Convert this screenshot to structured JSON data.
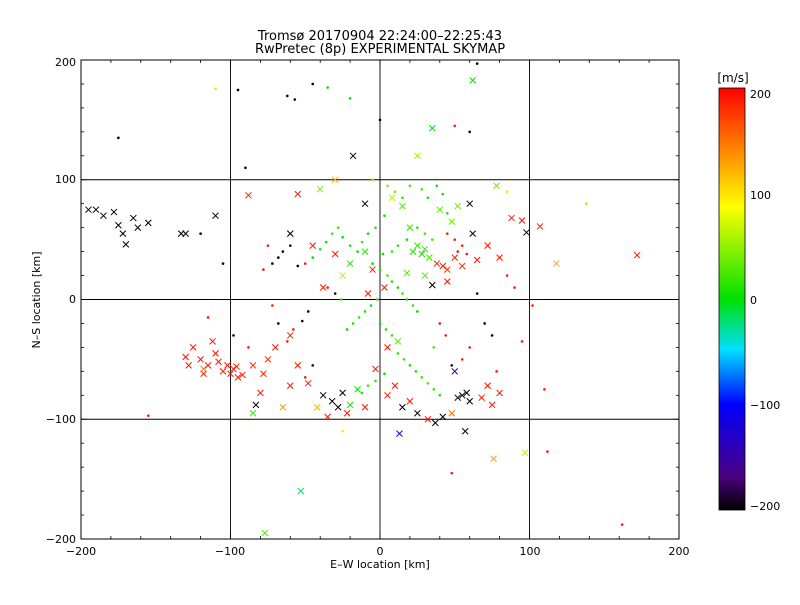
{
  "chart_data": {
    "type": "scatter",
    "title_line1": "Tromsø 20170904 22:24:00–22:25:43",
    "title_line2": "RwPretec (8p) EXPERIMENTAL SKYMAP",
    "xlabel": "E–W location [km]",
    "ylabel": "N–S location [km]",
    "xlim": [
      -200,
      200
    ],
    "ylim": [
      -200,
      200
    ],
    "xticks": [
      "−200",
      "−100",
      "0",
      "100",
      "200"
    ],
    "yticks": [
      "−200",
      "−100",
      "0",
      "100",
      "200"
    ],
    "grid": true,
    "colorbar": {
      "label": "[m/s]",
      "range": [
        -200,
        200
      ],
      "ticks": [
        "200",
        "100",
        "0",
        "−100",
        "−200"
      ],
      "colors": [
        "#000000",
        "#4b0082",
        "#0000ff",
        "#00e0ff",
        "#00e000",
        "#ffff00",
        "#ff8000",
        "#ff0000"
      ]
    },
    "cross_points": [
      {
        "x": -120,
        "y": -50,
        "v": 190
      },
      {
        "x": -115,
        "y": -55,
        "v": 190
      },
      {
        "x": -110,
        "y": -45,
        "v": 190
      },
      {
        "x": -105,
        "y": -60,
        "v": 185
      },
      {
        "x": -100,
        "y": -62,
        "v": 190
      },
      {
        "x": -95,
        "y": -65,
        "v": 190
      },
      {
        "x": -98,
        "y": -58,
        "v": 190
      },
      {
        "x": -92,
        "y": -63,
        "v": 190
      },
      {
        "x": -125,
        "y": -40,
        "v": 190
      },
      {
        "x": -112,
        "y": -35,
        "v": 190
      },
      {
        "x": -118,
        "y": -62,
        "v": 185
      },
      {
        "x": -128,
        "y": -55,
        "v": 190
      },
      {
        "x": -108,
        "y": -52,
        "v": 190
      },
      {
        "x": -102,
        "y": -55,
        "v": 190
      },
      {
        "x": -96,
        "y": -56,
        "v": 190
      },
      {
        "x": -130,
        "y": -48,
        "v": 190
      },
      {
        "x": -85,
        "y": -55,
        "v": 180
      },
      {
        "x": -78,
        "y": -62,
        "v": 180
      },
      {
        "x": -75,
        "y": -50,
        "v": 180
      },
      {
        "x": -195,
        "y": 75,
        "v": -200
      },
      {
        "x": -190,
        "y": 75,
        "v": -200
      },
      {
        "x": -185,
        "y": 70,
        "v": -200
      },
      {
        "x": -178,
        "y": 73,
        "v": -200
      },
      {
        "x": -175,
        "y": 62,
        "v": -200
      },
      {
        "x": -172,
        "y": 55,
        "v": -200
      },
      {
        "x": -170,
        "y": 46,
        "v": -200
      },
      {
        "x": -162,
        "y": 60,
        "v": -200
      },
      {
        "x": -155,
        "y": 64,
        "v": -200
      },
      {
        "x": -165,
        "y": 68,
        "v": -200
      },
      {
        "x": -133,
        "y": 55,
        "v": -200
      },
      {
        "x": -130,
        "y": 55,
        "v": -200
      },
      {
        "x": -110,
        "y": 70,
        "v": -200
      },
      {
        "x": -88,
        "y": 87,
        "v": 190
      },
      {
        "x": -55,
        "y": 88,
        "v": 190
      },
      {
        "x": -40,
        "y": 92,
        "v": 40
      },
      {
        "x": -30,
        "y": 100,
        "v": 120
      },
      {
        "x": -18,
        "y": 120,
        "v": -200
      },
      {
        "x": -10,
        "y": 80,
        "v": -200
      },
      {
        "x": 8,
        "y": 85,
        "v": 60
      },
      {
        "x": 15,
        "y": 78,
        "v": 30
      },
      {
        "x": 20,
        "y": 60,
        "v": 20
      },
      {
        "x": 25,
        "y": 45,
        "v": 20
      },
      {
        "x": 22,
        "y": 40,
        "v": 10
      },
      {
        "x": 28,
        "y": 38,
        "v": 5
      },
      {
        "x": 30,
        "y": 42,
        "v": 20
      },
      {
        "x": 33,
        "y": 35,
        "v": 25
      },
      {
        "x": 38,
        "y": 30,
        "v": 190
      },
      {
        "x": 42,
        "y": 28,
        "v": 190
      },
      {
        "x": 45,
        "y": 25,
        "v": 180
      },
      {
        "x": 50,
        "y": 35,
        "v": 190
      },
      {
        "x": 55,
        "y": 28,
        "v": 180
      },
      {
        "x": 40,
        "y": 75,
        "v": 30
      },
      {
        "x": 48,
        "y": 65,
        "v": 40
      },
      {
        "x": 52,
        "y": 78,
        "v": 40
      },
      {
        "x": 60,
        "y": 80,
        "v": -200
      },
      {
        "x": 62,
        "y": 55,
        "v": -200
      },
      {
        "x": 65,
        "y": 33,
        "v": 190
      },
      {
        "x": 72,
        "y": 45,
        "v": 190
      },
      {
        "x": 80,
        "y": 35,
        "v": 190
      },
      {
        "x": 88,
        "y": 68,
        "v": 190
      },
      {
        "x": 95,
        "y": 66,
        "v": 190
      },
      {
        "x": 98,
        "y": 56,
        "v": -200
      },
      {
        "x": 107,
        "y": 61,
        "v": 190
      },
      {
        "x": 118,
        "y": 30,
        "v": 130
      },
      {
        "x": 172,
        "y": 37,
        "v": 190
      },
      {
        "x": 78,
        "y": 95,
        "v": 40
      },
      {
        "x": 62,
        "y": 183,
        "v": 0
      },
      {
        "x": 35,
        "y": 143,
        "v": 0
      },
      {
        "x": 25,
        "y": 120,
        "v": 50
      },
      {
        "x": -60,
        "y": 55,
        "v": -200
      },
      {
        "x": -45,
        "y": 45,
        "v": 190
      },
      {
        "x": -30,
        "y": 38,
        "v": 190
      },
      {
        "x": -20,
        "y": 30,
        "v": 10
      },
      {
        "x": -10,
        "y": 40,
        "v": 20
      },
      {
        "x": -5,
        "y": 25,
        "v": 190
      },
      {
        "x": -55,
        "y": -55,
        "v": 190
      },
      {
        "x": -48,
        "y": -70,
        "v": 190
      },
      {
        "x": -38,
        "y": -80,
        "v": -200
      },
      {
        "x": -32,
        "y": -85,
        "v": -200
      },
      {
        "x": -28,
        "y": -90,
        "v": -200
      },
      {
        "x": -25,
        "y": -78,
        "v": -200
      },
      {
        "x": -20,
        "y": -88,
        "v": 10
      },
      {
        "x": -15,
        "y": -75,
        "v": 0
      },
      {
        "x": -22,
        "y": -95,
        "v": 190
      },
      {
        "x": -35,
        "y": -98,
        "v": 190
      },
      {
        "x": -42,
        "y": -90,
        "v": 120
      },
      {
        "x": -10,
        "y": -90,
        "v": 190
      },
      {
        "x": 5,
        "y": -80,
        "v": 190
      },
      {
        "x": 10,
        "y": -72,
        "v": 190
      },
      {
        "x": 15,
        "y": -90,
        "v": -200
      },
      {
        "x": 20,
        "y": -85,
        "v": 190
      },
      {
        "x": 25,
        "y": -95,
        "v": -200
      },
      {
        "x": 32,
        "y": -100,
        "v": 190
      },
      {
        "x": 37,
        "y": -103,
        "v": -200
      },
      {
        "x": 42,
        "y": -98,
        "v": -200
      },
      {
        "x": 48,
        "y": -95,
        "v": 150
      },
      {
        "x": 52,
        "y": -82,
        "v": -200
      },
      {
        "x": 55,
        "y": -80,
        "v": -200
      },
      {
        "x": 58,
        "y": -78,
        "v": -200
      },
      {
        "x": 60,
        "y": -85,
        "v": -200
      },
      {
        "x": 57,
        "y": -110,
        "v": -200
      },
      {
        "x": 50,
        "y": -60,
        "v": -150
      },
      {
        "x": 72,
        "y": -72,
        "v": 190
      },
      {
        "x": 68,
        "y": -82,
        "v": 190
      },
      {
        "x": 75,
        "y": -88,
        "v": 190
      },
      {
        "x": 80,
        "y": -78,
        "v": 190
      },
      {
        "x": 97,
        "y": -128,
        "v": 60
      },
      {
        "x": 76,
        "y": -133,
        "v": 130
      },
      {
        "x": 13,
        "y": -112,
        "v": -130
      },
      {
        "x": -53,
        "y": -160,
        "v": -20
      },
      {
        "x": -77,
        "y": -195,
        "v": 30
      },
      {
        "x": -118,
        "y": -58,
        "v": 150
      },
      {
        "x": -70,
        "y": -40,
        "v": 190
      },
      {
        "x": -60,
        "y": -30,
        "v": 190
      },
      {
        "x": -3,
        "y": -58,
        "v": 190
      },
      {
        "x": 5,
        "y": -40,
        "v": 190
      },
      {
        "x": 12,
        "y": -35,
        "v": 30
      },
      {
        "x": 3,
        "y": 10,
        "v": 190
      },
      {
        "x": -8,
        "y": 5,
        "v": 190
      },
      {
        "x": 45,
        "y": 15,
        "v": 190
      },
      {
        "x": 35,
        "y": 12,
        "v": -200
      },
      {
        "x": 30,
        "y": 20,
        "v": 30
      },
      {
        "x": 18,
        "y": 22,
        "v": 30
      },
      {
        "x": -25,
        "y": 20,
        "v": 60
      },
      {
        "x": -38,
        "y": 10,
        "v": 190
      },
      {
        "x": -80,
        "y": -78,
        "v": 190
      },
      {
        "x": -83,
        "y": -88,
        "v": -200
      },
      {
        "x": -60,
        "y": -72,
        "v": 190
      },
      {
        "x": -65,
        "y": -90,
        "v": 130
      },
      {
        "x": -85,
        "y": -95,
        "v": 20
      }
    ],
    "dot_points": [
      {
        "x": -175,
        "y": 135,
        "v": -200
      },
      {
        "x": -95,
        "y": 175,
        "v": -200
      },
      {
        "x": -57,
        "y": 167,
        "v": -200
      },
      {
        "x": -62,
        "y": 170,
        "v": -200
      },
      {
        "x": -45,
        "y": 180,
        "v": -200
      },
      {
        "x": 0,
        "y": 150,
        "v": -200
      },
      {
        "x": 60,
        "y": 140,
        "v": -200
      },
      {
        "x": 65,
        "y": 197,
        "v": -200
      },
      {
        "x": -110,
        "y": 176,
        "v": 100
      },
      {
        "x": -35,
        "y": 177,
        "v": 0
      },
      {
        "x": -20,
        "y": 168,
        "v": 0
      },
      {
        "x": 50,
        "y": 145,
        "v": 190
      },
      {
        "x": -90,
        "y": 110,
        "v": -200
      },
      {
        "x": -105,
        "y": 30,
        "v": -200
      },
      {
        "x": -120,
        "y": 55,
        "v": -200
      },
      {
        "x": -155,
        "y": -97,
        "v": 190
      },
      {
        "x": 162,
        "y": -188,
        "v": 190
      },
      {
        "x": 138,
        "y": 80,
        "v": 60
      },
      {
        "x": 110,
        "y": -75,
        "v": 190
      },
      {
        "x": 112,
        "y": -127,
        "v": 190
      },
      {
        "x": 48,
        "y": -145,
        "v": 190
      },
      {
        "x": -5,
        "y": 100,
        "v": 50
      },
      {
        "x": 5,
        "y": 95,
        "v": 40
      },
      {
        "x": 10,
        "y": 90,
        "v": 40
      },
      {
        "x": 15,
        "y": 85,
        "v": 20
      },
      {
        "x": 20,
        "y": 95,
        "v": 20
      },
      {
        "x": 28,
        "y": 92,
        "v": 30
      },
      {
        "x": 32,
        "y": 85,
        "v": 10
      },
      {
        "x": 38,
        "y": 95,
        "v": 0
      },
      {
        "x": 42,
        "y": 88,
        "v": 0
      },
      {
        "x": 45,
        "y": 72,
        "v": 10
      },
      {
        "x": 3,
        "y": 70,
        "v": 0
      },
      {
        "x": -3,
        "y": 60,
        "v": 10
      },
      {
        "x": -8,
        "y": 55,
        "v": 0
      },
      {
        "x": -12,
        "y": 48,
        "v": 20
      },
      {
        "x": -15,
        "y": 40,
        "v": 0
      },
      {
        "x": -20,
        "y": 45,
        "v": 10
      },
      {
        "x": -25,
        "y": 52,
        "v": 0
      },
      {
        "x": -28,
        "y": 60,
        "v": 20
      },
      {
        "x": -32,
        "y": 55,
        "v": 20
      },
      {
        "x": -36,
        "y": 48,
        "v": 0
      },
      {
        "x": -40,
        "y": 42,
        "v": 10
      },
      {
        "x": -45,
        "y": 35,
        "v": 0
      },
      {
        "x": -50,
        "y": 30,
        "v": 190
      },
      {
        "x": -55,
        "y": 28,
        "v": -200
      },
      {
        "x": -60,
        "y": 45,
        "v": -200
      },
      {
        "x": -65,
        "y": 40,
        "v": -200
      },
      {
        "x": -68,
        "y": 35,
        "v": -200
      },
      {
        "x": -72,
        "y": 30,
        "v": -200
      },
      {
        "x": -75,
        "y": 45,
        "v": 190
      },
      {
        "x": -78,
        "y": 25,
        "v": 190
      },
      {
        "x": -5,
        "y": 30,
        "v": 0
      },
      {
        "x": 0,
        "y": 25,
        "v": 10
      },
      {
        "x": 5,
        "y": 20,
        "v": 20
      },
      {
        "x": 8,
        "y": 15,
        "v": 10
      },
      {
        "x": 12,
        "y": 10,
        "v": 0
      },
      {
        "x": 15,
        "y": 5,
        "v": 20
      },
      {
        "x": 18,
        "y": 0,
        "v": 10
      },
      {
        "x": 22,
        "y": -5,
        "v": 20
      },
      {
        "x": 25,
        "y": -10,
        "v": 0
      },
      {
        "x": -2,
        "y": 0,
        "v": 20
      },
      {
        "x": -6,
        "y": -5,
        "v": 0
      },
      {
        "x": -10,
        "y": -10,
        "v": 10
      },
      {
        "x": -14,
        "y": -15,
        "v": 20
      },
      {
        "x": -18,
        "y": -20,
        "v": 10
      },
      {
        "x": -22,
        "y": -25,
        "v": 0
      },
      {
        "x": 0,
        "y": -20,
        "v": 0
      },
      {
        "x": 4,
        "y": -25,
        "v": 10
      },
      {
        "x": 8,
        "y": -30,
        "v": 20
      },
      {
        "x": 12,
        "y": -45,
        "v": 10
      },
      {
        "x": 16,
        "y": -50,
        "v": 20
      },
      {
        "x": 20,
        "y": -55,
        "v": 0
      },
      {
        "x": 24,
        "y": -60,
        "v": 10
      },
      {
        "x": 28,
        "y": -65,
        "v": 20
      },
      {
        "x": 32,
        "y": -70,
        "v": 30
      },
      {
        "x": 36,
        "y": -75,
        "v": 20
      },
      {
        "x": 40,
        "y": -80,
        "v": 10
      },
      {
        "x": 3,
        "y": -62,
        "v": 0
      },
      {
        "x": -3,
        "y": -68,
        "v": 10
      },
      {
        "x": -8,
        "y": -72,
        "v": 20
      },
      {
        "x": -12,
        "y": -78,
        "v": 10
      },
      {
        "x": 45,
        "y": 55,
        "v": 190
      },
      {
        "x": 50,
        "y": 50,
        "v": 190
      },
      {
        "x": 55,
        "y": 45,
        "v": 190
      },
      {
        "x": 58,
        "y": 38,
        "v": 190
      },
      {
        "x": 52,
        "y": 40,
        "v": 190
      },
      {
        "x": 35,
        "y": 50,
        "v": 20
      },
      {
        "x": 30,
        "y": 55,
        "v": 20
      },
      {
        "x": 25,
        "y": 60,
        "v": 10
      },
      {
        "x": 18,
        "y": 50,
        "v": 0
      },
      {
        "x": 12,
        "y": 45,
        "v": 10
      },
      {
        "x": 8,
        "y": 40,
        "v": 20
      },
      {
        "x": 2,
        "y": 38,
        "v": 0
      },
      {
        "x": 65,
        "y": 5,
        "v": -200
      },
      {
        "x": 70,
        "y": -20,
        "v": -200
      },
      {
        "x": 75,
        "y": -30,
        "v": -200
      },
      {
        "x": 60,
        "y": -40,
        "v": 190
      },
      {
        "x": 55,
        "y": -50,
        "v": 190
      },
      {
        "x": 48,
        "y": -55,
        "v": -200
      },
      {
        "x": -48,
        "y": -10,
        "v": -200
      },
      {
        "x": -52,
        "y": -18,
        "v": -200
      },
      {
        "x": -58,
        "y": -25,
        "v": 190
      },
      {
        "x": -62,
        "y": -35,
        "v": 190
      },
      {
        "x": -68,
        "y": -20,
        "v": -200
      },
      {
        "x": -72,
        "y": -5,
        "v": 190
      },
      {
        "x": -35,
        "y": 10,
        "v": 190
      },
      {
        "x": -30,
        "y": 5,
        "v": -200
      },
      {
        "x": -26,
        "y": 0,
        "v": 20
      },
      {
        "x": 40,
        "y": -20,
        "v": 190
      },
      {
        "x": 44,
        "y": -30,
        "v": 190
      },
      {
        "x": 36,
        "y": -40,
        "v": 20
      },
      {
        "x": -25,
        "y": -110,
        "v": 80
      },
      {
        "x": -45,
        "y": -55,
        "v": -200
      },
      {
        "x": -50,
        "y": -65,
        "v": 190
      },
      {
        "x": 85,
        "y": 20,
        "v": 190
      },
      {
        "x": 90,
        "y": 10,
        "v": 190
      },
      {
        "x": 102,
        "y": -5,
        "v": 190
      },
      {
        "x": 95,
        "y": -35,
        "v": 190
      },
      {
        "x": 78,
        "y": -60,
        "v": 190
      },
      {
        "x": 85,
        "y": 90,
        "v": 100
      },
      {
        "x": -115,
        "y": -15,
        "v": 190
      },
      {
        "x": -98,
        "y": -30,
        "v": -200
      },
      {
        "x": -88,
        "y": -40,
        "v": 190
      }
    ]
  }
}
